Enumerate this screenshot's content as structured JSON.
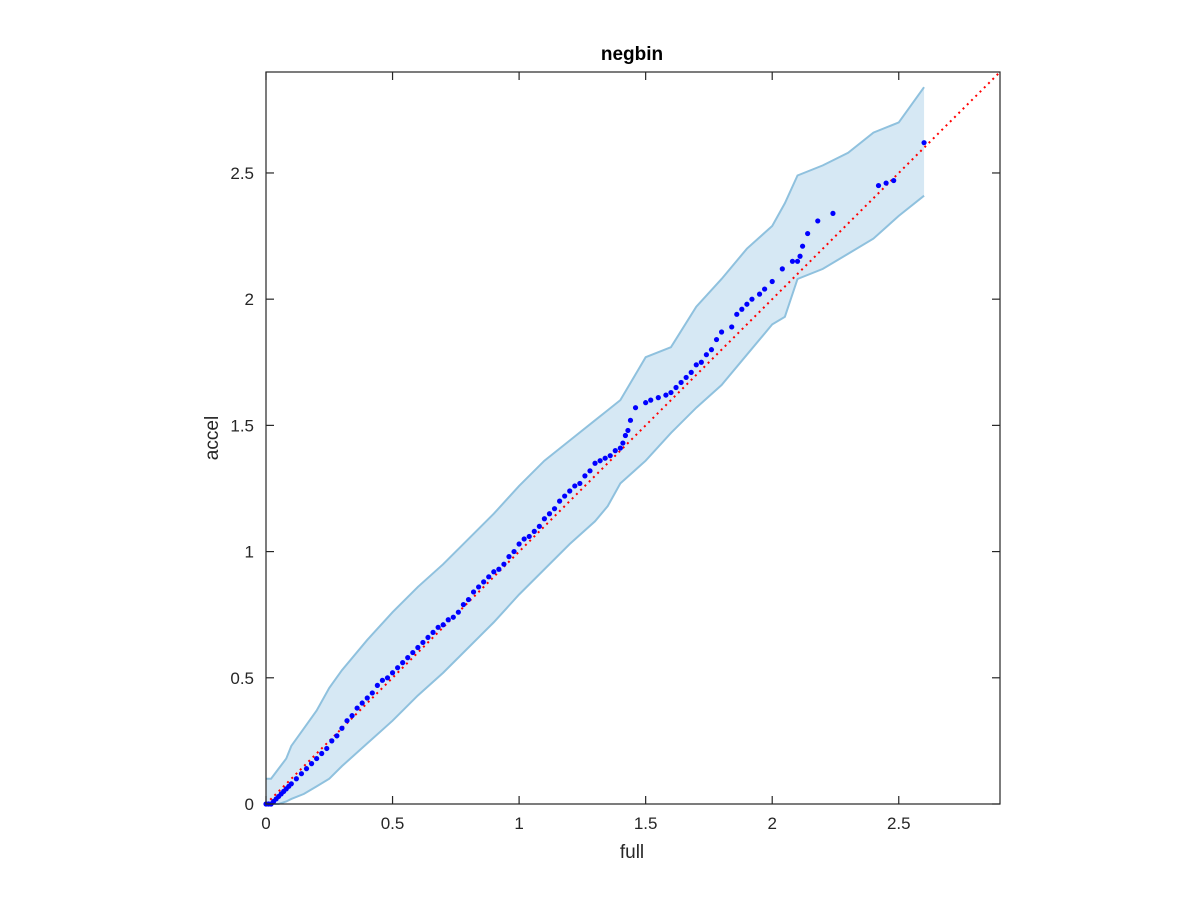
{
  "chart_data": {
    "type": "scatter",
    "title": "negbin",
    "xlabel": "full",
    "ylabel": "accel",
    "xlim": [
      0,
      2.9
    ],
    "ylim": [
      0,
      2.9
    ],
    "xticks": [
      0,
      0.5,
      1,
      1.5,
      2,
      2.5
    ],
    "yticks": [
      0,
      0.5,
      1,
      1.5,
      2,
      2.5
    ],
    "xtick_labels": [
      "0",
      "0.5",
      "1",
      "1.5",
      "2",
      "2.5"
    ],
    "ytick_labels": [
      "0",
      "0.5",
      "1",
      "1.5",
      "2",
      "2.5"
    ],
    "grid": false,
    "box": true,
    "colors": {
      "points": "#0000ff",
      "reference_line": "#ff0000",
      "band_fill": "#d6e8f4",
      "band_edge": "#8fc1de",
      "axes": "#262626"
    },
    "reference_line": {
      "name": "y = x",
      "style": "dotted",
      "x": [
        0,
        2.9
      ],
      "y": [
        0,
        2.9
      ]
    },
    "confidence_band": {
      "x": [
        0.0,
        0.02,
        0.05,
        0.08,
        0.1,
        0.15,
        0.2,
        0.25,
        0.3,
        0.4,
        0.5,
        0.6,
        0.7,
        0.8,
        0.9,
        1.0,
        1.1,
        1.2,
        1.3,
        1.35,
        1.4,
        1.5,
        1.6,
        1.7,
        1.8,
        1.9,
        2.0,
        2.05,
        2.1,
        2.2,
        2.3,
        2.4,
        2.5,
        2.6
      ],
      "lower": [
        0.0,
        0.0,
        0.0,
        0.01,
        0.02,
        0.04,
        0.07,
        0.1,
        0.15,
        0.24,
        0.33,
        0.43,
        0.52,
        0.62,
        0.72,
        0.83,
        0.93,
        1.03,
        1.12,
        1.18,
        1.27,
        1.36,
        1.47,
        1.57,
        1.66,
        1.78,
        1.9,
        1.93,
        2.08,
        2.12,
        2.18,
        2.24,
        2.33,
        2.41
      ],
      "upper": [
        0.1,
        0.1,
        0.14,
        0.18,
        0.23,
        0.3,
        0.37,
        0.46,
        0.53,
        0.65,
        0.76,
        0.86,
        0.95,
        1.05,
        1.15,
        1.26,
        1.36,
        1.44,
        1.52,
        1.56,
        1.6,
        1.77,
        1.81,
        1.97,
        2.08,
        2.2,
        2.29,
        2.38,
        2.49,
        2.53,
        2.58,
        2.66,
        2.7,
        2.84
      ]
    },
    "series": [
      {
        "x": [
          0.0,
          0.01,
          0.02,
          0.03,
          0.04,
          0.05,
          0.06,
          0.07,
          0.08,
          0.09,
          0.1,
          0.12,
          0.14,
          0.16,
          0.18,
          0.2,
          0.22,
          0.24,
          0.26,
          0.28,
          0.3,
          0.32,
          0.34,
          0.36,
          0.38,
          0.4,
          0.42,
          0.44,
          0.46,
          0.48,
          0.5,
          0.52,
          0.54,
          0.56,
          0.58,
          0.6,
          0.62,
          0.64,
          0.66,
          0.68,
          0.7,
          0.72,
          0.74,
          0.76,
          0.78,
          0.8,
          0.82,
          0.84,
          0.86,
          0.88,
          0.9,
          0.92,
          0.94,
          0.96,
          0.98,
          1.0,
          1.02,
          1.04,
          1.06,
          1.08,
          1.1,
          1.12,
          1.14,
          1.16,
          1.18,
          1.2,
          1.22,
          1.24,
          1.26,
          1.28,
          1.3,
          1.32,
          1.34,
          1.36,
          1.38,
          1.4,
          1.41,
          1.42,
          1.43,
          1.44,
          1.46,
          1.5,
          1.52,
          1.55,
          1.58,
          1.6,
          1.62,
          1.64,
          1.66,
          1.68,
          1.7,
          1.72,
          1.74,
          1.76,
          1.78,
          1.8,
          1.84,
          1.86,
          1.88,
          1.9,
          1.92,
          1.95,
          1.97,
          2.0,
          2.04,
          2.08,
          2.1,
          2.11,
          2.12,
          2.14,
          2.18,
          2.24,
          2.42,
          2.45,
          2.48,
          2.6
        ],
        "y": [
          0.0,
          0.0,
          0.0,
          0.01,
          0.02,
          0.03,
          0.04,
          0.05,
          0.06,
          0.07,
          0.08,
          0.1,
          0.12,
          0.14,
          0.16,
          0.18,
          0.2,
          0.22,
          0.25,
          0.27,
          0.3,
          0.33,
          0.35,
          0.38,
          0.4,
          0.42,
          0.44,
          0.47,
          0.49,
          0.5,
          0.52,
          0.54,
          0.56,
          0.58,
          0.6,
          0.62,
          0.64,
          0.66,
          0.68,
          0.7,
          0.71,
          0.73,
          0.74,
          0.76,
          0.79,
          0.81,
          0.84,
          0.86,
          0.88,
          0.9,
          0.92,
          0.93,
          0.95,
          0.98,
          1.0,
          1.03,
          1.05,
          1.06,
          1.08,
          1.1,
          1.13,
          1.15,
          1.17,
          1.2,
          1.22,
          1.24,
          1.26,
          1.27,
          1.3,
          1.32,
          1.35,
          1.36,
          1.37,
          1.38,
          1.4,
          1.41,
          1.43,
          1.46,
          1.48,
          1.52,
          1.57,
          1.59,
          1.6,
          1.61,
          1.62,
          1.63,
          1.65,
          1.67,
          1.69,
          1.71,
          1.74,
          1.75,
          1.78,
          1.8,
          1.84,
          1.87,
          1.89,
          1.94,
          1.96,
          1.98,
          2.0,
          2.02,
          2.04,
          2.07,
          2.12,
          2.15,
          2.15,
          2.17,
          2.21,
          2.26,
          2.31,
          2.34,
          2.45,
          2.46,
          2.47,
          2.62
        ]
      }
    ]
  }
}
